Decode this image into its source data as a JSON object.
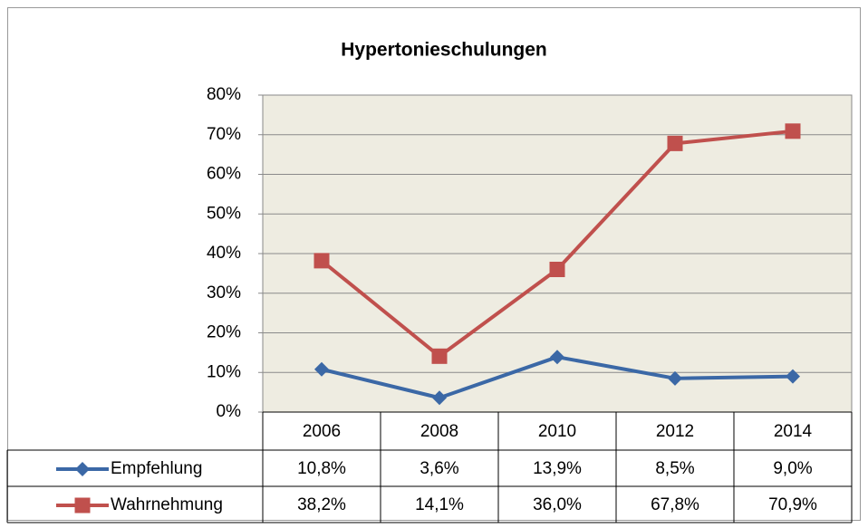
{
  "chart_data": {
    "type": "line",
    "title": "Hypertonieschulungen",
    "categories": [
      "2006",
      "2008",
      "2010",
      "2012",
      "2014"
    ],
    "series": [
      {
        "name": "Empfehlung",
        "color": "#3b68a6",
        "marker": "diamond",
        "values": [
          10.8,
          3.6,
          13.9,
          8.5,
          9.0
        ],
        "value_labels": [
          "10,8%",
          "3,6%",
          "13,9%",
          "8,5%",
          "9,0%"
        ]
      },
      {
        "name": "Wahrnehmung",
        "color": "#c0504d",
        "marker": "square",
        "values": [
          38.2,
          14.1,
          36.0,
          67.8,
          70.9
        ],
        "value_labels": [
          "38,2%",
          "14,1%",
          "36,0%",
          "67,8%",
          "70,9%"
        ]
      }
    ],
    "ylim": [
      0,
      80
    ],
    "yticks": [
      {
        "value": 0,
        "label": "0%"
      },
      {
        "value": 10,
        "label": "10%"
      },
      {
        "value": 20,
        "label": "20%"
      },
      {
        "value": 30,
        "label": "30%"
      },
      {
        "value": 40,
        "label": "40%"
      },
      {
        "value": 50,
        "label": "50%"
      },
      {
        "value": 60,
        "label": "60%"
      },
      {
        "value": 70,
        "label": "70%"
      },
      {
        "value": 80,
        "label": "80%"
      }
    ],
    "grid": true,
    "plot_background": "#eeece1",
    "legend": "table"
  }
}
